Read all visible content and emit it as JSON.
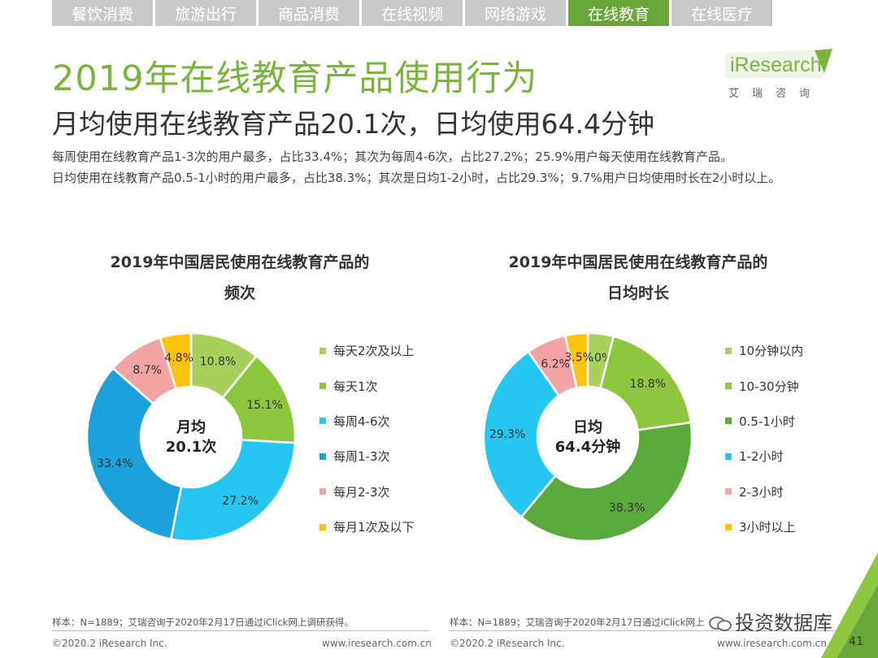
{
  "tabs": [
    "餐饮消费",
    "旅游出行",
    "商品消费",
    "在线视频",
    "网络游戏",
    "在线教育",
    "在线医疗"
  ],
  "active_tab": 5,
  "header": {
    "title": "2019年在线教育产品使用行为",
    "subtitle": "月均使用在线教育产品20.1次，日均使用64.4分钟",
    "desc_line1": "每周使用在线教育产品1-3次的用户最多，占比33.4%；其次为每周4-6次，占比27.2%；25.9%用户每天使用在线教育产品。",
    "desc_line2": "日均使用在线教育产品0.5-1小时的用户最多，占比38.3%；其次是日均1-2小时，占比29.3%；9.7%用户日均使用时长在2小时以上。"
  },
  "logo": {
    "word": "iResearch",
    "cn": "艾瑞咨询",
    "color": "#7ab43e"
  },
  "chart_data": [
    {
      "type": "pie",
      "title_line1": "2019年中国居民使用在线教育产品的",
      "title_line2": "频次",
      "center_line1": "月均",
      "center_line2": "20.1次",
      "categories": [
        "每天2次及以上",
        "每天1次",
        "每周4-6次",
        "每周1-3次",
        "每月2-3次",
        "每月1次及以下"
      ],
      "values": [
        10.8,
        15.1,
        27.2,
        33.4,
        8.7,
        4.8
      ],
      "labels": [
        "10.8%",
        "15.1%",
        "27.2%",
        "33.4%",
        "8.7%",
        "4.8%"
      ],
      "colors": [
        "#a9d05c",
        "#8dc63f",
        "#27c6f0",
        "#1da1da",
        "#f2a3a3",
        "#ffc20e"
      ],
      "legend": "right"
    },
    {
      "type": "pie",
      "title_line1": "2019年中国居民使用在线教育产品的",
      "title_line2": "日均时长",
      "center_line1": "日均",
      "center_line2": "64.4分钟",
      "categories": [
        "10分钟以内",
        "10-30分钟",
        "0.5-1小时",
        "1-2小时",
        "2-3小时",
        "3小时以上"
      ],
      "values": [
        4.0,
        18.8,
        38.3,
        29.3,
        6.2,
        3.5
      ],
      "labels": [
        "4.0%",
        "18.8%",
        "38.3%",
        "29.3%",
        "6.2%",
        "3.5%"
      ],
      "colors": [
        "#a9d05c",
        "#8dc63f",
        "#5aa93c",
        "#27c6f0",
        "#f2a3a3",
        "#ffc20e"
      ],
      "legend": "right"
    }
  ],
  "footer": {
    "source": "样本：N=1889；艾瑞咨询于2020年2月17日通过iClick网上调研获得。",
    "source_right": "样本：N=1889；艾瑞咨询于2020年2月17日通过iClick网上",
    "copyright": "©2020.2 iResearch Inc.",
    "site": "www.iresearch.com.cn",
    "page": "41",
    "watermark": "投资数据库"
  }
}
